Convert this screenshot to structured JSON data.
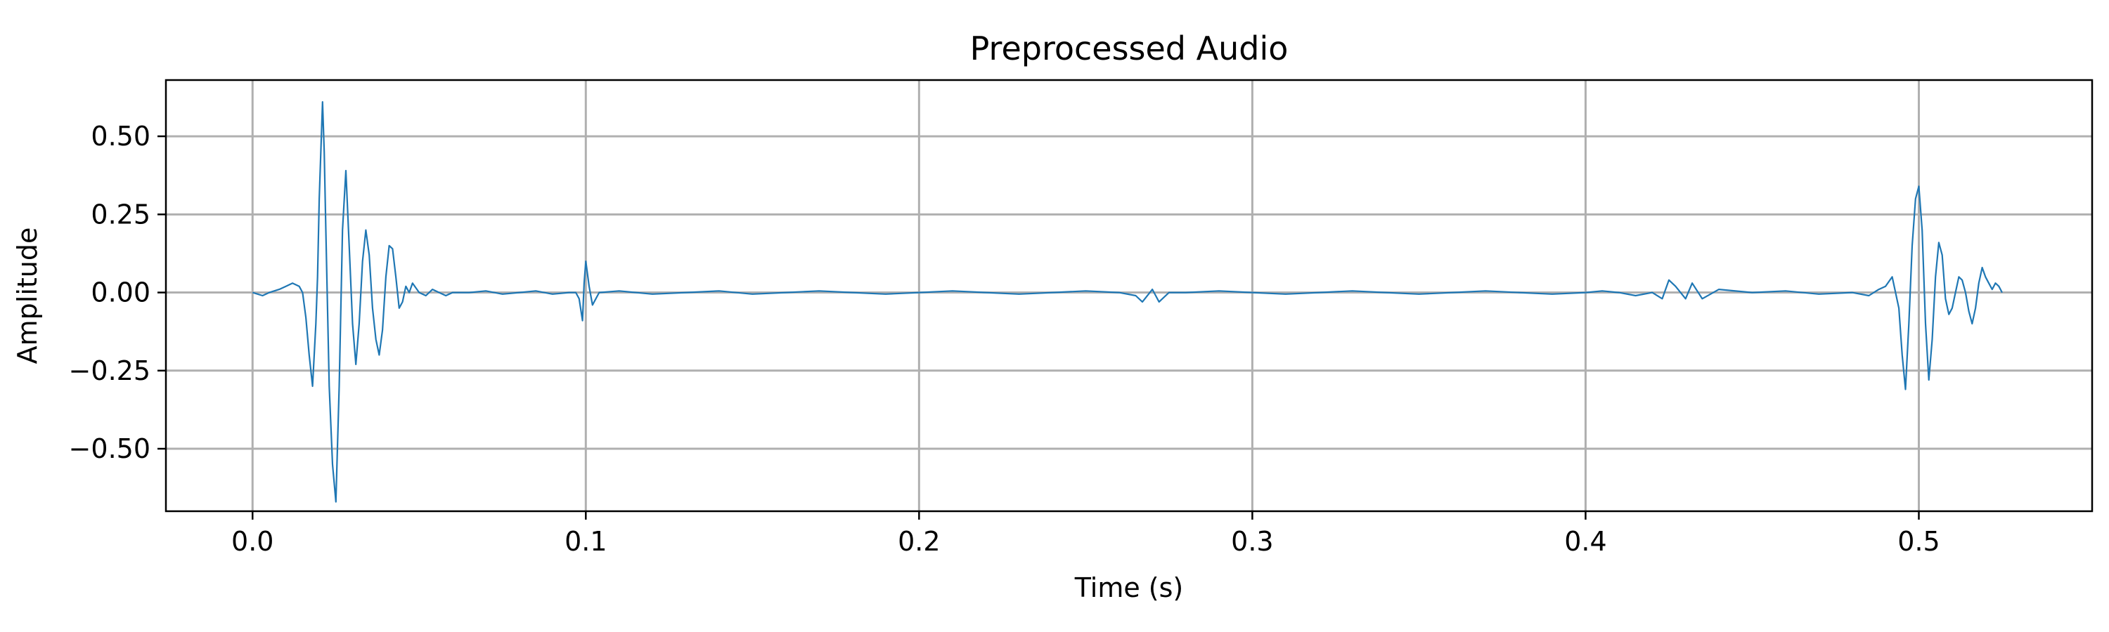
{
  "chart_data": {
    "type": "line",
    "title": "Preprocessed Audio",
    "xlabel": "Time (s)",
    "ylabel": "Amplitude",
    "xlim": [
      -0.026,
      0.552
    ],
    "ylim": [
      -0.7,
      0.68
    ],
    "xticks": [
      0.0,
      0.1,
      0.2,
      0.3,
      0.4,
      0.5
    ],
    "xtick_labels": [
      "0.0",
      "0.1",
      "0.2",
      "0.3",
      "0.4",
      "0.5"
    ],
    "yticks": [
      0.5,
      0.25,
      0.0,
      -0.25,
      -0.5
    ],
    "ytick_labels": [
      "0.50",
      "0.25",
      "0.00",
      "−0.25",
      "−0.50"
    ],
    "grid": true,
    "line_color": "#1f77b4",
    "series": [
      {
        "x": [
          0.0,
          0.003,
          0.005,
          0.008,
          0.01,
          0.012,
          0.014,
          0.015,
          0.016,
          0.017,
          0.018,
          0.019,
          0.0195,
          0.02,
          0.021,
          0.0215,
          0.022,
          0.023,
          0.024,
          0.025,
          0.026,
          0.027,
          0.028,
          0.029,
          0.03,
          0.031,
          0.032,
          0.033,
          0.034,
          0.035,
          0.036,
          0.037,
          0.038,
          0.039,
          0.04,
          0.041,
          0.042,
          0.043,
          0.044,
          0.045,
          0.046,
          0.047,
          0.048,
          0.05,
          0.052,
          0.054,
          0.056,
          0.058,
          0.06,
          0.065,
          0.07,
          0.075,
          0.08,
          0.085,
          0.09,
          0.095,
          0.097,
          0.098,
          0.099,
          0.0995,
          0.1,
          0.101,
          0.102,
          0.104,
          0.11,
          0.12,
          0.13,
          0.14,
          0.15,
          0.16,
          0.17,
          0.18,
          0.19,
          0.2,
          0.21,
          0.22,
          0.23,
          0.24,
          0.25,
          0.26,
          0.265,
          0.267,
          0.27,
          0.272,
          0.275,
          0.28,
          0.29,
          0.3,
          0.31,
          0.32,
          0.33,
          0.34,
          0.35,
          0.36,
          0.37,
          0.38,
          0.39,
          0.4,
          0.405,
          0.41,
          0.415,
          0.42,
          0.423,
          0.425,
          0.427,
          0.43,
          0.432,
          0.435,
          0.44,
          0.45,
          0.46,
          0.47,
          0.48,
          0.485,
          0.488,
          0.49,
          0.492,
          0.494,
          0.495,
          0.496,
          0.497,
          0.498,
          0.499,
          0.5,
          0.501,
          0.502,
          0.503,
          0.504,
          0.505,
          0.506,
          0.507,
          0.508,
          0.509,
          0.51,
          0.511,
          0.512,
          0.513,
          0.514,
          0.515,
          0.516,
          0.517,
          0.518,
          0.519,
          0.52,
          0.521,
          0.522,
          0.523,
          0.524,
          0.525
        ],
        "y": [
          0.0,
          -0.01,
          0.0,
          0.01,
          0.02,
          0.03,
          0.02,
          0.0,
          -0.08,
          -0.2,
          -0.3,
          -0.1,
          0.05,
          0.3,
          0.61,
          0.45,
          0.2,
          -0.3,
          -0.55,
          -0.67,
          -0.3,
          0.2,
          0.39,
          0.15,
          -0.1,
          -0.23,
          -0.1,
          0.1,
          0.2,
          0.12,
          -0.05,
          -0.15,
          -0.2,
          -0.12,
          0.05,
          0.15,
          0.14,
          0.05,
          -0.05,
          -0.03,
          0.02,
          0.0,
          0.03,
          0.0,
          -0.01,
          0.01,
          0.0,
          -0.01,
          0.0,
          0.0,
          0.005,
          -0.005,
          0.0,
          0.005,
          -0.005,
          0.0,
          0.0,
          -0.02,
          -0.09,
          0.03,
          0.1,
          0.02,
          -0.04,
          0.0,
          0.005,
          -0.005,
          0.0,
          0.005,
          -0.005,
          0.0,
          0.005,
          0.0,
          -0.005,
          0.0,
          0.005,
          0.0,
          -0.005,
          0.0,
          0.005,
          0.0,
          -0.01,
          -0.03,
          0.01,
          -0.03,
          0.0,
          0.0,
          0.005,
          0.0,
          -0.005,
          0.0,
          0.005,
          0.0,
          -0.005,
          0.0,
          0.005,
          0.0,
          -0.005,
          0.0,
          0.005,
          0.0,
          -0.01,
          0.0,
          -0.02,
          0.04,
          0.02,
          -0.02,
          0.03,
          -0.02,
          0.01,
          0.0,
          0.005,
          -0.005,
          0.0,
          -0.01,
          0.01,
          0.02,
          0.05,
          -0.05,
          -0.2,
          -0.31,
          -0.1,
          0.15,
          0.3,
          0.34,
          0.2,
          -0.1,
          -0.28,
          -0.15,
          0.05,
          0.16,
          0.12,
          -0.02,
          -0.07,
          -0.05,
          0.0,
          0.05,
          0.04,
          0.0,
          -0.06,
          -0.1,
          -0.05,
          0.03,
          0.08,
          0.05,
          0.03,
          0.01,
          0.03,
          0.02,
          0.0
        ]
      }
    ]
  }
}
